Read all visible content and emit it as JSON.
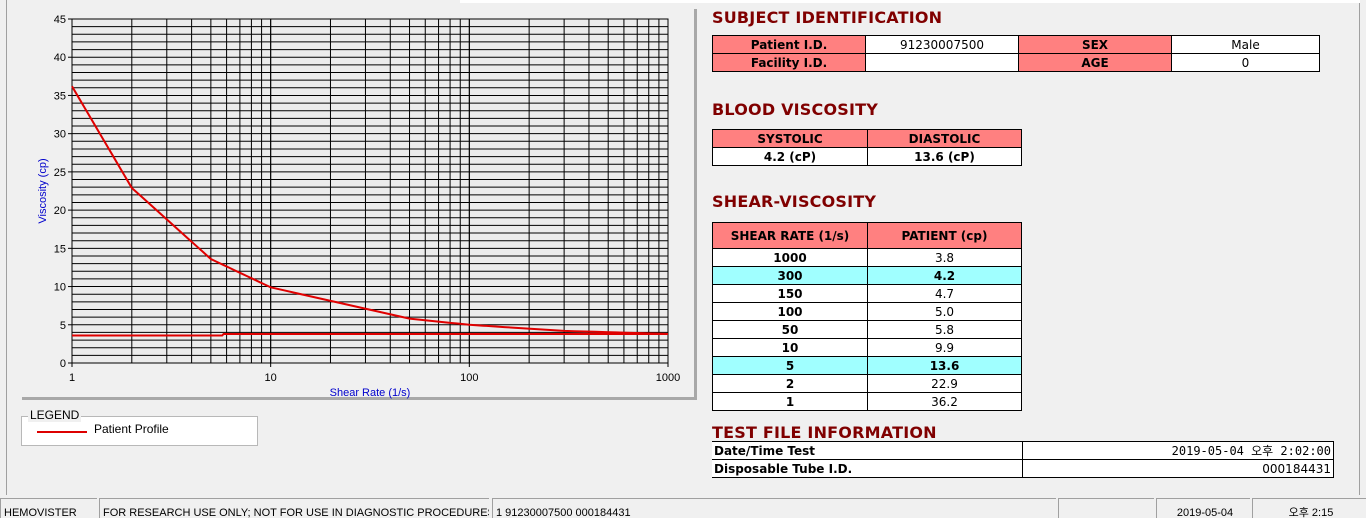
{
  "chart_data": {
    "type": "line",
    "xlabel": "Shear Rate (1/s)",
    "ylabel": "Viscosity (cp)",
    "x_scale": "log",
    "xlim": [
      1,
      1000
    ],
    "ylim": [
      0,
      45
    ],
    "x_ticks": [
      "1",
      "10",
      "100",
      "1000"
    ],
    "y_ticks": [
      "0",
      "5",
      "10",
      "15",
      "20",
      "25",
      "30",
      "35",
      "40",
      "45"
    ],
    "grid": true,
    "legend": "bottom-left",
    "series": [
      {
        "name": "Patient Profile",
        "color": "#e00000",
        "x": [
          1,
          2,
          5,
          10,
          50,
          100,
          150,
          300,
          1000
        ],
        "y": [
          36.2,
          22.9,
          13.6,
          9.9,
          5.8,
          5.0,
          4.7,
          4.2,
          3.8
        ]
      },
      {
        "color": "#e00000",
        "x": [
          1,
          5.7,
          5.8,
          1000
        ],
        "y": [
          3.6,
          3.6,
          3.8,
          3.8
        ]
      }
    ]
  },
  "legend": {
    "title": "LEGEND",
    "entry": "Patient Profile"
  },
  "subject": {
    "title": "SUBJECT IDENTIFICATION",
    "patient_id_label": "Patient I.D.",
    "patient_id": "91230007500",
    "sex_label": "SEX",
    "sex": "Male",
    "facility_label": "Facility I.D.",
    "facility": "",
    "age_label": "AGE",
    "age": "0"
  },
  "blood": {
    "title": "BLOOD VISCOSITY",
    "systolic_label": "SYSTOLIC",
    "diastolic_label": "DIASTOLIC",
    "systolic": "4.2 (cP)",
    "diastolic": "13.6 (cP)"
  },
  "shear": {
    "title": "SHEAR-VISCOSITY",
    "col1": "SHEAR RATE (1/s)",
    "col2": "PATIENT (cp)",
    "rows": [
      [
        "1000",
        "3.8"
      ],
      [
        "300",
        "4.2"
      ],
      [
        "150",
        "4.7"
      ],
      [
        "100",
        "5.0"
      ],
      [
        "50",
        "5.8"
      ],
      [
        "10",
        "9.9"
      ],
      [
        "5",
        "13.6"
      ],
      [
        "2",
        "22.9"
      ],
      [
        "1",
        "36.2"
      ]
    ],
    "highlight_color": "#a0ffff"
  },
  "testfile": {
    "title": "TEST FILE INFORMATION",
    "date_label": "Date/Time Test",
    "date": "2019-05-04   오후 2:02:00",
    "tube_label": "Disposable Tube I.D.",
    "tube": "000184431"
  },
  "status": {
    "app": "HEMOVISTER",
    "notice": "FOR RESEARCH USE ONLY; NOT FOR USE IN DIAGNOSTIC PROCEDURES",
    "record": "1  91230007500  000184431",
    "blank": "",
    "date": "2019-05-04",
    "time": "오후 2:15"
  }
}
